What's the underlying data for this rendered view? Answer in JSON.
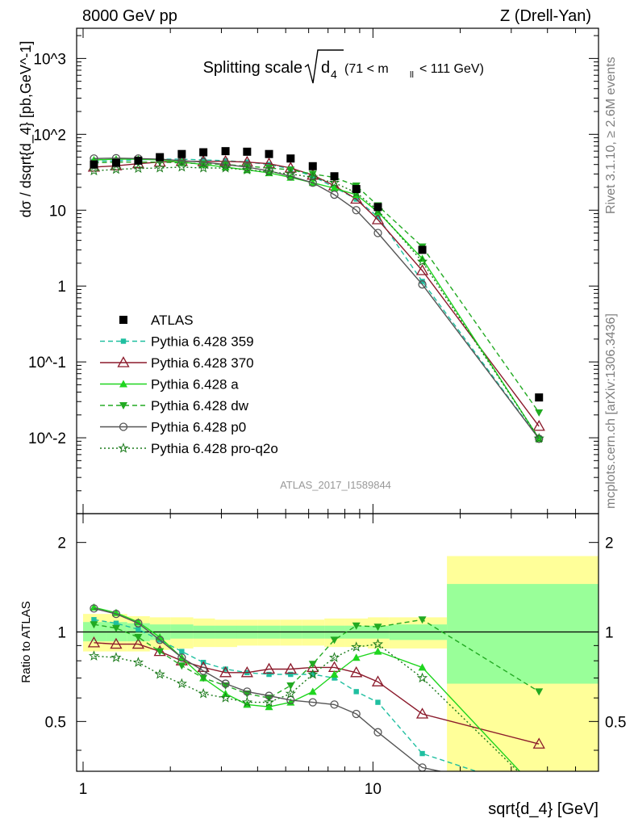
{
  "header": {
    "left": "8000 GeV pp",
    "right": "Z (Drell-Yan)",
    "side_version": "Rivet 3.1.10, ≥ 2.6M events",
    "side_site": "mcplots.cern.ch [arXiv:1306.3436]",
    "analysis_id": "ATLAS_2017_I1589844"
  },
  "title": {
    "main": "Splitting scale",
    "symbol": "d",
    "symbol_sub": "4",
    "cut": "(71 < m",
    "cut_sub": "ll",
    "cut_end": " < 111 GeV)"
  },
  "axes": {
    "ylabel_main": "dσ / dsqrt{d_4} [pb,GeV^-1]",
    "ylabel_ratio": "Ratio to ATLAS",
    "xlabel": "sqrt{d_4} [GeV]",
    "xticks": [
      "1",
      "10"
    ],
    "ymain_ticks": [
      "10^-2",
      "10^-1",
      "1",
      "10",
      "10^2",
      "10^3"
    ],
    "yratio_ticks": [
      "0.5",
      "1",
      "2"
    ]
  },
  "chart_data": [
    {
      "type": "scatter",
      "panel": "main",
      "xscale": "log",
      "yscale": "log",
      "xlim": [
        0.95,
        60
      ],
      "ylim": [
        0.001,
        2500
      ],
      "x": [
        1.09,
        1.3,
        1.55,
        1.84,
        2.19,
        2.6,
        3.1,
        3.68,
        4.38,
        5.2,
        6.2,
        7.36,
        8.76,
        10.4,
        14.8,
        37.4
      ],
      "series": [
        {
          "name": "ATLAS",
          "style": "data",
          "color": "#000000",
          "values": [
            40,
            42,
            45,
            50,
            55,
            58,
            60,
            59,
            55,
            48,
            38,
            28,
            19,
            11,
            3.0,
            0.034
          ]
        },
        {
          "name": "Pythia 6.428 359",
          "style": "dashed",
          "marker": "square",
          "color": "#1fbfa0",
          "values": [
            44,
            45,
            46,
            47,
            47,
            46,
            45,
            43,
            40,
            35,
            28,
            20,
            14,
            8.2,
            1.15,
            0.0098
          ]
        },
        {
          "name": "Pythia 6.428 370",
          "style": "solid",
          "marker": "triangle-open",
          "color": "#8b1a2b",
          "values": [
            37,
            38.5,
            41,
            43,
            44,
            44,
            44,
            43,
            41,
            36,
            29,
            21,
            14,
            7.5,
            1.6,
            0.0142
          ]
        },
        {
          "name": "Pythia 6.428 a",
          "style": "solid",
          "marker": "triangle",
          "color": "#1fd51f",
          "values": [
            46,
            47,
            47,
            46,
            43,
            40,
            37,
            34,
            31,
            27,
            23,
            19.5,
            16,
            9.5,
            2.3,
            0.0098
          ]
        },
        {
          "name": "Pythia 6.428 dw",
          "style": "dashed",
          "marker": "triangle-down",
          "color": "#22aa22",
          "values": [
            42,
            43,
            43,
            43,
            42,
            41,
            40,
            38,
            36,
            34,
            30,
            27,
            21,
            11.5,
            3.3,
            0.0215
          ]
        },
        {
          "name": "Pythia 6.428 p0",
          "style": "solid",
          "marker": "circle-open",
          "color": "#555555",
          "values": [
            48,
            48.5,
            48,
            47,
            45,
            43,
            40,
            37,
            33,
            28,
            23,
            16,
            10,
            5.0,
            1.05,
            0.0097
          ]
        },
        {
          "name": "Pythia 6.428 pro-q2o",
          "style": "dotted",
          "marker": "star",
          "color": "#1a7a1a",
          "values": [
            33,
            34.5,
            35.5,
            36,
            37,
            36,
            36,
            34,
            32,
            30,
            27,
            23,
            17,
            10,
            2.1,
            0.0098
          ]
        }
      ]
    },
    {
      "type": "line",
      "panel": "ratio",
      "xscale": "log",
      "yscale": "log",
      "xlim": [
        0.95,
        60
      ],
      "ylim": [
        0.34,
        2.5
      ],
      "reference": 1,
      "bands": [
        {
          "name": "total uncertainty",
          "color": "#ffff99",
          "bins": [
            [
              1,
              1.2,
              0.86,
              1.15
            ],
            [
              1.2,
              1.42,
              0.86,
              1.15
            ],
            [
              1.42,
              1.7,
              0.86,
              1.13
            ],
            [
              1.7,
              2.0,
              0.87,
              1.12
            ],
            [
              2.0,
              2.4,
              0.88,
              1.12
            ],
            [
              2.4,
              2.85,
              0.89,
              1.11
            ],
            [
              2.85,
              3.4,
              0.89,
              1.1
            ],
            [
              3.4,
              4.0,
              0.9,
              1.1
            ],
            [
              4.0,
              4.8,
              0.9,
              1.1
            ],
            [
              4.8,
              5.7,
              0.9,
              1.1
            ],
            [
              5.7,
              6.8,
              0.9,
              1.1
            ],
            [
              6.8,
              8.0,
              0.89,
              1.11
            ],
            [
              8.0,
              9.6,
              0.89,
              1.11
            ],
            [
              9.6,
              11.4,
              0.88,
              1.12
            ],
            [
              11.4,
              18.0,
              0.88,
              1.12
            ],
            [
              18.0,
              60,
              0.3,
              1.8
            ]
          ]
        },
        {
          "name": "stat uncertainty",
          "color": "#99ff99",
          "bins": [
            [
              1,
              1.2,
              0.93,
              1.08
            ],
            [
              1.2,
              1.42,
              0.93,
              1.08
            ],
            [
              1.42,
              1.7,
              0.93,
              1.07
            ],
            [
              1.7,
              2.0,
              0.94,
              1.06
            ],
            [
              2.0,
              2.4,
              0.95,
              1.06
            ],
            [
              2.4,
              2.85,
              0.95,
              1.05
            ],
            [
              2.85,
              3.4,
              0.95,
              1.05
            ],
            [
              3.4,
              4.0,
              0.95,
              1.05
            ],
            [
              4.0,
              4.8,
              0.95,
              1.05
            ],
            [
              4.8,
              5.7,
              0.95,
              1.05
            ],
            [
              5.7,
              6.8,
              0.95,
              1.05
            ],
            [
              6.8,
              8.0,
              0.95,
              1.05
            ],
            [
              8.0,
              9.6,
              0.95,
              1.05
            ],
            [
              9.6,
              11.4,
              0.95,
              1.05
            ],
            [
              11.4,
              18.0,
              0.94,
              1.06
            ],
            [
              18.0,
              60,
              0.67,
              1.45
            ]
          ]
        }
      ],
      "x": [
        1.09,
        1.3,
        1.55,
        1.84,
        2.19,
        2.6,
        3.1,
        3.68,
        4.38,
        5.2,
        6.2,
        7.36,
        8.76,
        10.4,
        14.8,
        37.4
      ],
      "series": [
        {
          "name": "Pythia 6.428 359",
          "values": [
            1.1,
            1.07,
            1.02,
            0.94,
            0.86,
            0.79,
            0.75,
            0.73,
            0.72,
            0.72,
            0.72,
            0.7,
            0.63,
            0.58,
            0.39,
            0.29
          ]
        },
        {
          "name": "Pythia 6.428 370",
          "values": [
            0.92,
            0.91,
            0.91,
            0.86,
            0.8,
            0.76,
            0.73,
            0.73,
            0.75,
            0.75,
            0.76,
            0.76,
            0.73,
            0.68,
            0.53,
            0.42
          ]
        },
        {
          "name": "Pythia 6.428 a",
          "values": [
            1.21,
            1.16,
            1.08,
            0.96,
            0.82,
            0.7,
            0.62,
            0.57,
            0.56,
            0.58,
            0.63,
            0.72,
            0.82,
            0.86,
            0.76,
            0.29
          ]
        },
        {
          "name": "Pythia 6.428 dw",
          "values": [
            1.06,
            1.03,
            0.96,
            0.86,
            0.77,
            0.7,
            0.66,
            0.62,
            0.6,
            0.66,
            0.78,
            0.94,
            1.05,
            1.04,
            1.1,
            0.63
          ]
        },
        {
          "name": "Pythia 6.428 p0",
          "values": [
            1.2,
            1.15,
            1.07,
            0.94,
            0.82,
            0.74,
            0.67,
            0.63,
            0.61,
            0.59,
            0.58,
            0.57,
            0.53,
            0.46,
            0.35,
            0.29
          ]
        },
        {
          "name": "Pythia 6.428 pro-q2o",
          "values": [
            0.83,
            0.82,
            0.79,
            0.72,
            0.67,
            0.62,
            0.6,
            0.58,
            0.58,
            0.62,
            0.72,
            0.82,
            0.89,
            0.91,
            0.7,
            0.29
          ]
        }
      ]
    }
  ]
}
